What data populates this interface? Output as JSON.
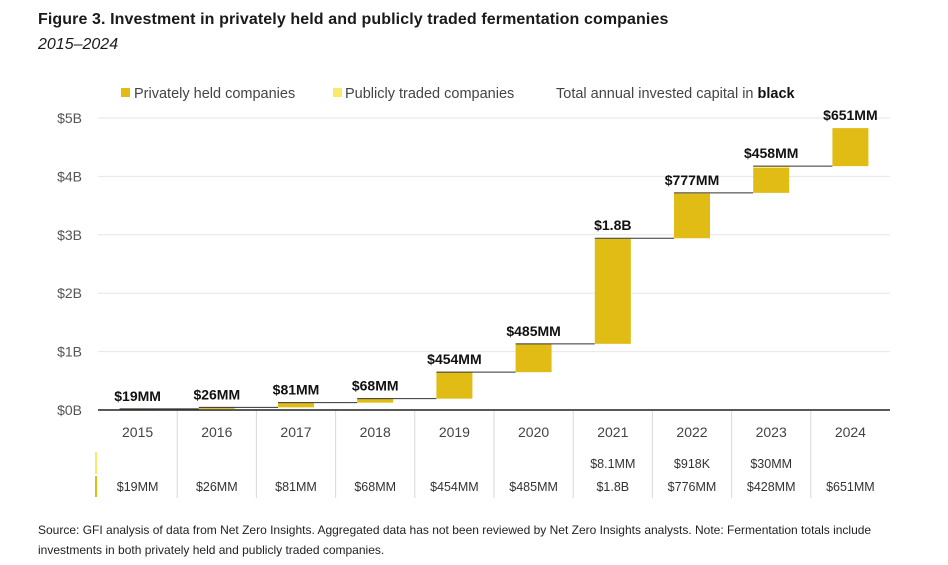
{
  "figure": {
    "title": "Figure 3. Investment in privately held and publicly traded fermentation companies",
    "subtitle": "2015–2024",
    "source": "Source: GFI analysis of data from Net Zero Insights. Aggregated data has not been reviewed by Net Zero Insights analysts. Note: Fermentation totals include investments in both privately held and publicly traded companies."
  },
  "colors": {
    "private": "#e0bc14",
    "public": "#fbe96b",
    "connector": "#333333",
    "grid": "#e6e6e6",
    "divider": "#d8d8d8"
  },
  "chart_data": {
    "type": "bar",
    "subtype": "waterfall",
    "legend": {
      "position": "top",
      "private_label": "Privately held companies",
      "public_label": "Publicly traded companies",
      "note_prefix": "Total annual invested capital in ",
      "note_bold": "black"
    },
    "ylim": [
      0,
      5
    ],
    "y_unit": "$B",
    "y_ticks": [
      {
        "value": 0,
        "label": "$0B"
      },
      {
        "value": 1,
        "label": "$1B"
      },
      {
        "value": 2,
        "label": "$2B"
      },
      {
        "value": 3,
        "label": "$3B"
      },
      {
        "value": 4,
        "label": "$4B"
      },
      {
        "value": 5,
        "label": "$5B"
      }
    ],
    "categories": [
      "2015",
      "2016",
      "2017",
      "2018",
      "2019",
      "2020",
      "2021",
      "2022",
      "2023",
      "2024"
    ],
    "series": [
      {
        "name": "Privately held companies",
        "values": [
          0.019,
          0.026,
          0.081,
          0.068,
          0.454,
          0.485,
          1.8,
          0.776,
          0.428,
          0.651
        ]
      },
      {
        "name": "Publicly traded companies",
        "values": [
          0,
          0,
          0,
          0,
          0,
          0,
          0.0081,
          0.000918,
          0.03,
          0
        ]
      }
    ],
    "totals": [
      0.019,
      0.026,
      0.081,
      0.068,
      0.454,
      0.485,
      1.8,
      0.777,
      0.458,
      0.651
    ],
    "cumulative": [
      0.019,
      0.045,
      0.126,
      0.194,
      0.648,
      1.133,
      2.941,
      3.718,
      4.176,
      4.827
    ],
    "total_labels": [
      "$19MM",
      "$26MM",
      "$81MM",
      "$68MM",
      "$454MM",
      "$485MM",
      "$1.8B",
      "$777MM",
      "$458MM",
      "$651MM"
    ],
    "table": {
      "public_row": [
        "",
        "",
        "",
        "",
        "",
        "",
        "$8.1MM",
        "$918K",
        "$30MM",
        ""
      ],
      "private_row": [
        "$19MM",
        "$26MM",
        "$81MM",
        "$68MM",
        "$454MM",
        "$485MM",
        "$1.8B",
        "$776MM",
        "$428MM",
        "$651MM"
      ]
    }
  }
}
